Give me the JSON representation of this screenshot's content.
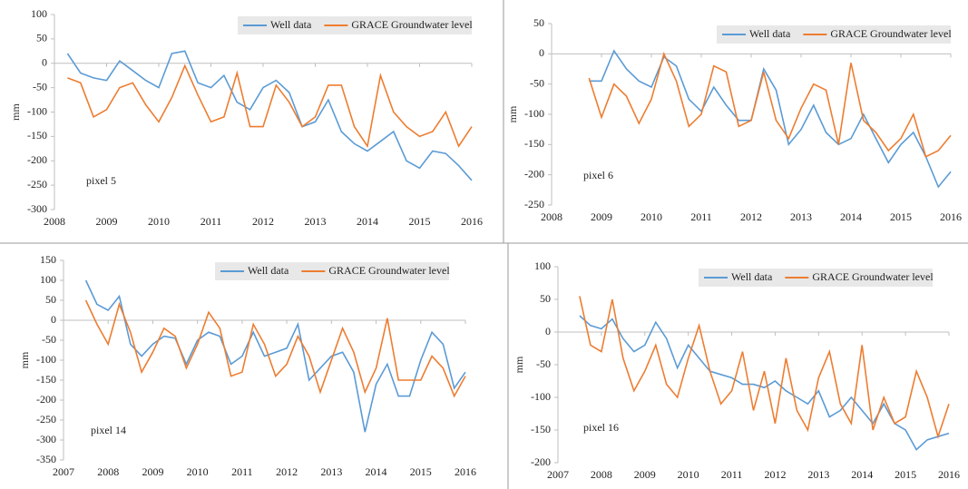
{
  "chart_data": [
    {
      "type": "line",
      "annotation": "pixel 5",
      "ylabel": "mm",
      "x": [
        2008.25,
        2008.5,
        2008.75,
        2009,
        2009.25,
        2009.5,
        2009.75,
        2010,
        2010.25,
        2010.5,
        2010.75,
        2011,
        2011.25,
        2011.5,
        2011.75,
        2012,
        2012.25,
        2012.5,
        2012.75,
        2013,
        2013.25,
        2013.5,
        2013.75,
        2014,
        2014.25,
        2014.5,
        2014.75,
        2015,
        2015.25,
        2015.5,
        2015.75,
        2016
      ],
      "series": [
        {
          "name": "Well data",
          "color": "#5b9bd5",
          "values": [
            20,
            -20,
            -30,
            -35,
            5,
            -15,
            -35,
            -50,
            20,
            25,
            -40,
            -50,
            -25,
            -80,
            -95,
            -50,
            -35,
            -60,
            -130,
            -120,
            -75,
            -140,
            -165,
            -180,
            -160,
            -140,
            -200,
            -215,
            -180,
            -185,
            -210,
            -240
          ]
        },
        {
          "name": "GRACE Groundwater level",
          "color": "#ed7d31",
          "values": [
            -30,
            -40,
            -110,
            -95,
            -50,
            -40,
            -85,
            -120,
            -70,
            -5,
            -65,
            -120,
            -110,
            -20,
            -130,
            -130,
            -45,
            -80,
            -130,
            -110,
            -45,
            -45,
            -130,
            -170,
            -25,
            -100,
            -130,
            -150,
            -140,
            -100,
            -170,
            -130
          ]
        }
      ],
      "xlim": [
        2008,
        2016
      ],
      "xticks": [
        2008,
        2009,
        2010,
        2011,
        2012,
        2013,
        2014,
        2015,
        2016
      ],
      "ylim": [
        -300,
        100
      ],
      "yticks": [
        -300,
        -250,
        -200,
        -150,
        -100,
        -50,
        0,
        50,
        100
      ],
      "legend": "upper right",
      "grid": false
    },
    {
      "type": "line",
      "annotation": "pixel 6",
      "ylabel": "mm",
      "x": [
        2008.75,
        2009,
        2009.25,
        2009.5,
        2009.75,
        2010,
        2010.25,
        2010.5,
        2010.75,
        2011,
        2011.25,
        2011.5,
        2011.75,
        2012,
        2012.25,
        2012.5,
        2012.75,
        2013,
        2013.25,
        2013.5,
        2013.75,
        2014,
        2014.25,
        2014.5,
        2014.75,
        2015,
        2015.25,
        2015.5,
        2015.75,
        2016
      ],
      "series": [
        {
          "name": "Well data",
          "color": "#5b9bd5",
          "values": [
            -45,
            -45,
            5,
            -25,
            -45,
            -55,
            -5,
            -20,
            -75,
            -95,
            -55,
            -85,
            -110,
            -110,
            -25,
            -60,
            -150,
            -125,
            -85,
            -130,
            -150,
            -140,
            -100,
            -140,
            -180,
            -150,
            -130,
            -170,
            -220,
            -195
          ]
        },
        {
          "name": "GRACE Groundwater level",
          "color": "#ed7d31",
          "values": [
            -40,
            -105,
            -50,
            -70,
            -115,
            -75,
            0,
            -45,
            -120,
            -100,
            -20,
            -30,
            -120,
            -110,
            -30,
            -110,
            -140,
            -90,
            -50,
            -60,
            -150,
            -15,
            -110,
            -130,
            -160,
            -140,
            -100,
            -170,
            -160,
            -135
          ]
        }
      ],
      "xlim": [
        2008,
        2016
      ],
      "xticks": [
        2008,
        2009,
        2010,
        2011,
        2012,
        2013,
        2014,
        2015,
        2016
      ],
      "ylim": [
        -250,
        50
      ],
      "yticks": [
        -250,
        -200,
        -150,
        -100,
        -50,
        0,
        50
      ],
      "legend": "upper right",
      "grid": false
    },
    {
      "type": "line",
      "annotation": "pixel 14",
      "ylabel": "mm",
      "x": [
        2007.5,
        2007.75,
        2008,
        2008.25,
        2008.5,
        2008.75,
        2009,
        2009.25,
        2009.5,
        2009.75,
        2010,
        2010.25,
        2010.5,
        2010.75,
        2011,
        2011.25,
        2011.5,
        2011.75,
        2012,
        2012.25,
        2012.5,
        2012.75,
        2013,
        2013.25,
        2013.5,
        2013.75,
        2014,
        2014.25,
        2014.5,
        2014.75,
        2015,
        2015.25,
        2015.5,
        2015.75,
        2016
      ],
      "series": [
        {
          "name": "Well data",
          "color": "#5b9bd5",
          "values": [
            100,
            40,
            25,
            60,
            -60,
            -90,
            -60,
            -40,
            -45,
            -110,
            -50,
            -30,
            -40,
            -110,
            -90,
            -30,
            -90,
            -80,
            -70,
            -10,
            -150,
            -120,
            -90,
            -80,
            -130,
            -280,
            -160,
            -110,
            -190,
            -190,
            -100,
            -30,
            -60,
            -170,
            -130
          ]
        },
        {
          "name": "GRACE Groundwater level",
          "color": "#ed7d31",
          "values": [
            50,
            -10,
            -60,
            40,
            -30,
            -130,
            -80,
            -20,
            -40,
            -120,
            -60,
            20,
            -20,
            -140,
            -130,
            -10,
            -60,
            -140,
            -110,
            -40,
            -90,
            -180,
            -100,
            -20,
            -80,
            -180,
            -120,
            5,
            -150,
            -150,
            -150,
            -90,
            -120,
            -190,
            -140
          ]
        }
      ],
      "xlim": [
        2007,
        2016
      ],
      "xticks": [
        2007,
        2008,
        2009,
        2010,
        2011,
        2012,
        2013,
        2014,
        2015,
        2016
      ],
      "ylim": [
        -350,
        150
      ],
      "yticks": [
        -350,
        -300,
        -250,
        -200,
        -150,
        -100,
        -50,
        0,
        50,
        100,
        150
      ],
      "legend": "upper right",
      "grid": false
    },
    {
      "type": "line",
      "annotation": "pixel 16",
      "ylabel": "mm",
      "x": [
        2007.5,
        2007.75,
        2008,
        2008.25,
        2008.5,
        2008.75,
        2009,
        2009.25,
        2009.5,
        2009.75,
        2010,
        2010.25,
        2010.5,
        2010.75,
        2011,
        2011.25,
        2011.5,
        2011.75,
        2012,
        2012.25,
        2012.5,
        2012.75,
        2013,
        2013.25,
        2013.5,
        2013.75,
        2014,
        2014.25,
        2014.5,
        2014.75,
        2015,
        2015.25,
        2015.5,
        2015.75,
        2016
      ],
      "series": [
        {
          "name": "Well data",
          "color": "#5b9bd5",
          "values": [
            25,
            10,
            5,
            20,
            -10,
            -30,
            -20,
            15,
            -10,
            -55,
            -20,
            -40,
            -60,
            -65,
            -70,
            -80,
            -80,
            -85,
            -75,
            -90,
            -100,
            -110,
            -90,
            -130,
            -120,
            -100,
            -120,
            -140,
            -110,
            -140,
            -150,
            -180,
            -165,
            -160,
            -155
          ]
        },
        {
          "name": "GRACE Groundwater level",
          "color": "#ed7d31",
          "values": [
            55,
            -20,
            -30,
            50,
            -40,
            -90,
            -60,
            -20,
            -80,
            -100,
            -40,
            10,
            -60,
            -110,
            -90,
            -30,
            -120,
            -60,
            -140,
            -40,
            -120,
            -150,
            -70,
            -30,
            -110,
            -140,
            -20,
            -150,
            -100,
            -140,
            -130,
            -60,
            -100,
            -160,
            -110
          ]
        }
      ],
      "xlim": [
        2007,
        2016
      ],
      "xticks": [
        2007,
        2008,
        2009,
        2010,
        2011,
        2012,
        2013,
        2014,
        2015,
        2016
      ],
      "ylim": [
        -200,
        100
      ],
      "yticks": [
        -200,
        -150,
        -100,
        -50,
        0,
        50,
        100
      ],
      "legend": "upper right",
      "grid": false
    }
  ]
}
